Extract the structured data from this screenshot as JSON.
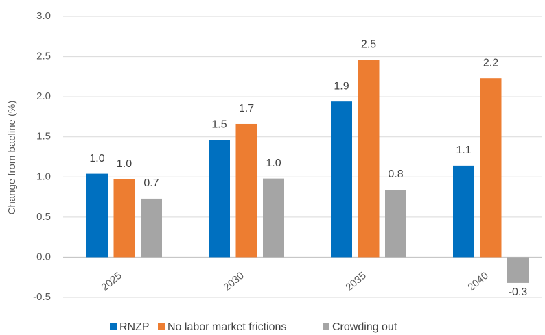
{
  "chart_data": {
    "type": "bar",
    "y_label": "Change from baeline (%)",
    "categories": [
      "2025",
      "2030",
      "2035",
      "2040"
    ],
    "series": [
      {
        "name": "RNZP",
        "color": "#0070c0",
        "values": [
          1.04,
          1.46,
          1.94,
          1.14
        ],
        "value_labels": [
          "1.0",
          "1.5",
          "1.9",
          "1.1"
        ]
      },
      {
        "name": "No labor market frictions",
        "color": "#ed7d31",
        "values": [
          0.97,
          1.66,
          2.46,
          2.23
        ],
        "value_labels": [
          "1.0",
          "1.7",
          "2.5",
          "2.2"
        ]
      },
      {
        "name": "Crowding out",
        "color": "#a5a5a5",
        "values": [
          0.73,
          0.98,
          0.84,
          -0.32
        ],
        "value_labels": [
          "0.7",
          "1.0",
          "0.8",
          "-0.3"
        ]
      }
    ],
    "ylim": [
      -0.5,
      3.0
    ],
    "yticks": [
      -0.5,
      {
        "value": 0,
        "label": "0.0"
      },
      0.5,
      {
        "value": 1,
        "label": "1.0"
      },
      1.5,
      {
        "value": 2,
        "label": "2.0"
      },
      2.5,
      {
        "value": 3,
        "label": "3.0"
      }
    ],
    "grid": true,
    "legend": "bottom"
  }
}
